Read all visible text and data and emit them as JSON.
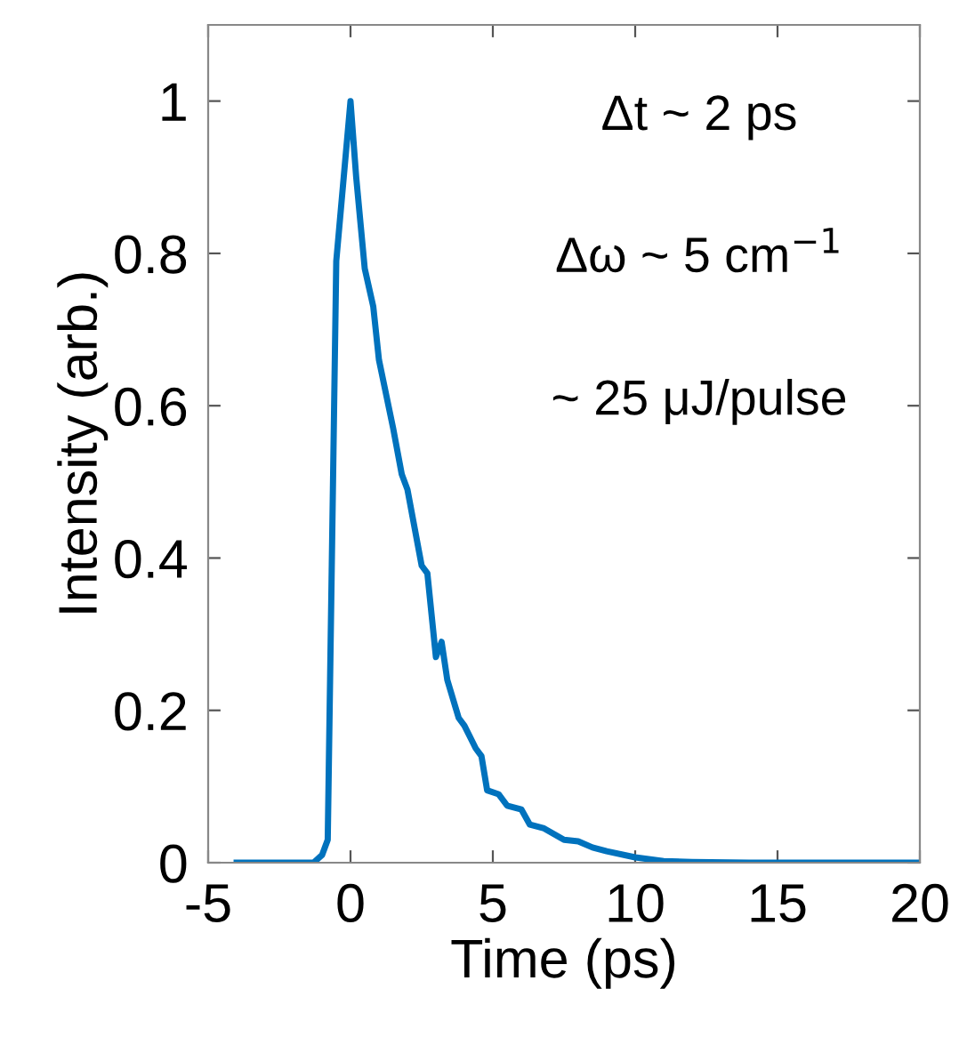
{
  "chart_data": {
    "type": "line",
    "xlabel": "Time (ps)",
    "ylabel": "Intensity (arb.)",
    "x": [
      -4,
      -1.3,
      -1,
      -0.8,
      -0.5,
      0,
      0.2,
      0.5,
      0.8,
      1,
      1.5,
      1.8,
      2,
      2.5,
      2.7,
      3,
      3.2,
      3.4,
      3.8,
      4,
      4.4,
      4.6,
      4.8,
      5.2,
      5.5,
      6,
      6.3,
      6.8,
      7.5,
      8,
      8.5,
      9,
      10,
      11,
      12,
      14,
      20
    ],
    "series": [
      {
        "color": "#0072bd",
        "values": [
          0,
          0,
          0.01,
          0.03,
          0.79,
          1,
          0.9,
          0.78,
          0.73,
          0.66,
          0.57,
          0.51,
          0.49,
          0.39,
          0.38,
          0.27,
          0.29,
          0.24,
          0.19,
          0.18,
          0.15,
          0.14,
          0.095,
          0.09,
          0.075,
          0.07,
          0.05,
          0.045,
          0.03,
          0.028,
          0.02,
          0.015,
          0.007,
          0.002,
          0.001,
          0,
          0
        ]
      }
    ],
    "xlim": [
      -5,
      20
    ],
    "ylim": [
      0,
      1.1
    ],
    "xticks": [
      -5,
      0,
      5,
      10,
      15,
      20
    ],
    "yticks": [
      0,
      0.2,
      0.4,
      0.6,
      0.8,
      1
    ],
    "annotations": [
      "Δt ~ 2 ps",
      "Δω ~ 5 cm$^{−1}$",
      "~ 25 μJ/pulse"
    ],
    "grid": false,
    "marker": "none",
    "line_style": "solid"
  }
}
